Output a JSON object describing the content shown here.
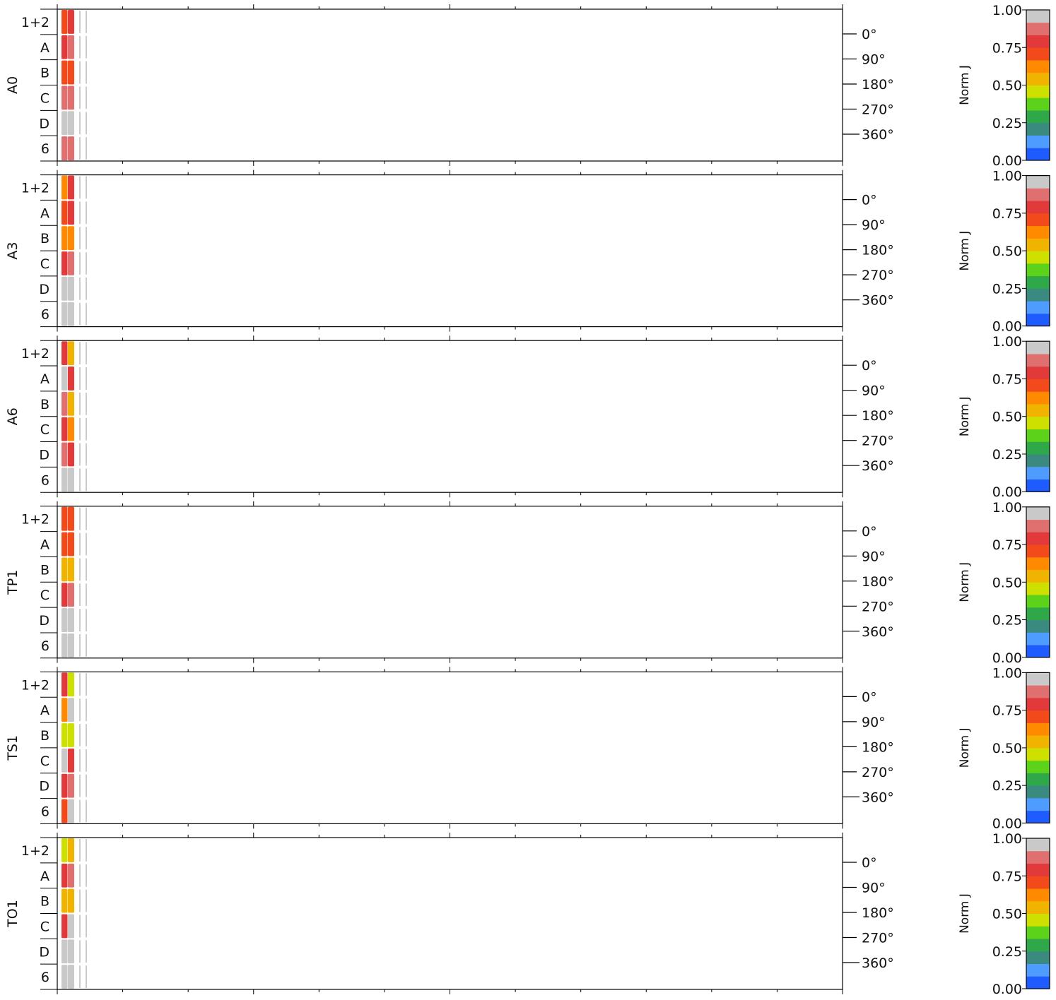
{
  "chart_data": {
    "type": "heatmap",
    "row_labels": [
      "1+2",
      "A",
      "B",
      "C",
      "D",
      "6"
    ],
    "angle_labels": [
      "0°",
      "90°",
      "180°",
      "270°",
      "360°"
    ],
    "colorbar": {
      "title": "Norm J",
      "ticks": [
        "0.00",
        "0.25",
        "0.50",
        "0.75",
        "1.00"
      ],
      "range": [
        0,
        1
      ],
      "colors": [
        "#1e5cff",
        "#4e9cff",
        "#3a8a80",
        "#2fa84a",
        "#5cd21a",
        "#cde000",
        "#f0b400",
        "#ff8a00",
        "#f24a1a",
        "#e23a3a",
        "#e07070",
        "#c9c9c9"
      ]
    },
    "panels": [
      {
        "label": "A0",
        "cells": [
          [
            0.71,
            0.83
          ],
          [
            0.84,
            0.94
          ],
          [
            0.71,
            0.71
          ],
          [
            0.94,
            0.94
          ],
          [
            1.0,
            1.0
          ],
          [
            0.89,
            0.94
          ]
        ]
      },
      {
        "label": "A3",
        "cells": [
          [
            0.63,
            0.79
          ],
          [
            0.71,
            0.79
          ],
          [
            0.63,
            0.63
          ],
          [
            0.83,
            0.94
          ],
          [
            1.0,
            1.0
          ],
          [
            0.96,
            0.96
          ]
        ]
      },
      {
        "label": "A6",
        "cells": [
          [
            0.79,
            0.53
          ],
          [
            0.97,
            0.79
          ],
          [
            0.94,
            0.55
          ],
          [
            0.84,
            0.67
          ],
          [
            0.94,
            0.79
          ],
          [
            1.0,
            1.0
          ]
        ]
      },
      {
        "label": "TP1",
        "cells": [
          [
            0.74,
            0.74
          ],
          [
            0.74,
            0.74
          ],
          [
            0.58,
            0.53
          ],
          [
            0.86,
            0.94
          ],
          [
            1.0,
            1.0
          ],
          [
            0.96,
            0.96
          ]
        ]
      },
      {
        "label": "TS1",
        "cells": [
          [
            0.79,
            0.43
          ],
          [
            0.62,
            1.0
          ],
          [
            0.44,
            0.44
          ],
          [
            1.0,
            0.79
          ],
          [
            0.84,
            0.89
          ],
          [
            0.74,
            0.96
          ]
        ]
      },
      {
        "label": "TO1",
        "cells": [
          [
            0.43,
            0.55
          ],
          [
            0.84,
            0.94
          ],
          [
            0.52,
            0.52
          ],
          [
            0.86,
            1.0
          ],
          [
            0.97,
            0.97
          ],
          [
            1.0,
            0.96
          ]
        ]
      }
    ]
  }
}
